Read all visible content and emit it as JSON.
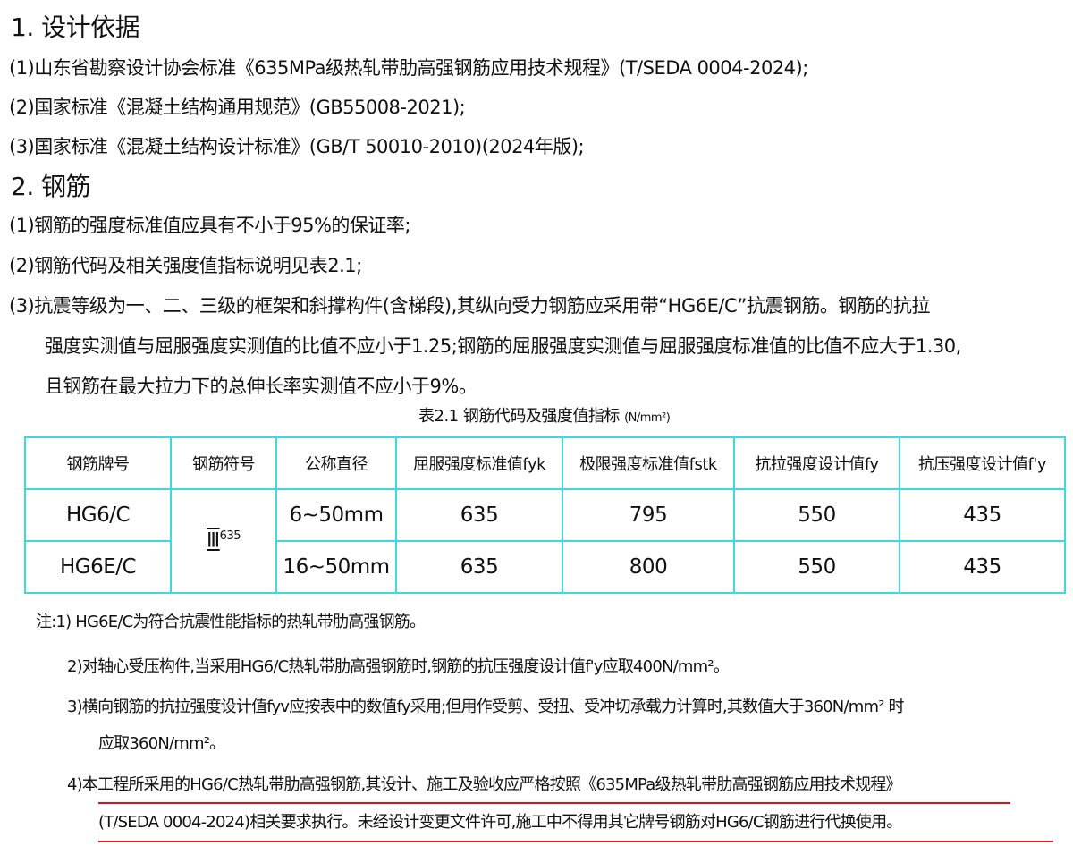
{
  "section1": {
    "title": "1. 设计依据",
    "items": [
      "(1)山东省勘察设计协会标准《635MPa级热轧带肋高强钢筋应用技术规程》(T/SEDA 0004-2024);",
      "(2)国家标准《混凝土结构通用规范》(GB55008-2021);",
      "(3)国家标准《混凝土结构设计标准》(GB/T 50010-2010)(2024年版);"
    ]
  },
  "section2": {
    "title": "2. 钢筋",
    "items": [
      "(1)钢筋的强度标准值应具有不小于95%的保证率;",
      "(2)钢筋代码及相关强度值指标说明见表2.1;",
      "(3)抗震等级为一、二、三级的框架和斜撑构件(含梯段),其纵向受力钢筋应采用带“HG6E/C”抗震钢筋。钢筋的抗拉",
      "强度实测值与屈服强度实测值的比值不应小于1.25;钢筋的屈服强度实测值与屈服强度标准值的比值不应大于1.30,",
      "且钢筋在最大拉力下的总伸长率实测值不应小于9%。"
    ]
  },
  "table": {
    "caption": "表2.1  钢筋代码及强度值指标",
    "caption_unit": "(N/mm²)",
    "headers": [
      "钢筋牌号",
      "钢筋符号",
      "公称直径",
      "屈服强度标准值fyk",
      "极限强度标准值fstk",
      "抗拉强度设计值fy",
      "抗压强度设计值f'y"
    ],
    "symbol": "Ⅲ",
    "symbol_sup": "635",
    "rows": [
      {
        "grade": "HG6/C",
        "diameter": "6~50mm",
        "fyk": "635",
        "fstk": "795",
        "fy": "550",
        "fpy": "435"
      },
      {
        "grade": "HG6E/C",
        "diameter": "16~50mm",
        "fyk": "635",
        "fstk": "800",
        "fy": "550",
        "fpy": "435"
      }
    ]
  },
  "notes": [
    "注:1) HG6E/C为符合抗震性能指标的热轧带肋高强钢筋。",
    "2)对轴心受压构件,当采用HG6/C热轧带肋高强钢筋时,钢筋的抗压强度设计值f'y应取400N/mm²。",
    "3)横向钢筋的抗拉强度设计值fyv应按表中的数值fy采用;但用作受剪、受扭、受冲切承载力计算时,其数值大于360N/mm² 时",
    "应取360N/mm²。",
    "4)本工程所采用的HG6/C热轧带肋高强钢筋,其设计、施工及验收应严格按照《635MPa级热轧带肋高强钢筋应用技术规程》",
    "(T/SEDA 0004-2024)相关要求执行。未经设计变更文件许可,施工中不得用其它牌号钢筋对HG6/C钢筋进行代换使用。"
  ],
  "colors": {
    "table_border": "#3fd8e0",
    "underline": "#e0101a"
  }
}
